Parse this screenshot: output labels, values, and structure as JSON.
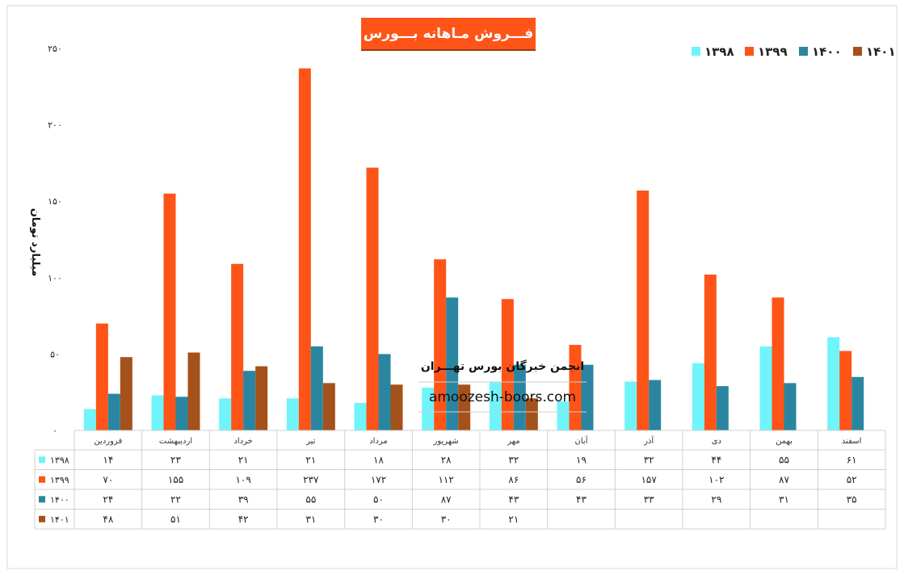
{
  "chart_data": {
    "type": "bar",
    "title": "فـــروش مـاهانه بـــورس",
    "ylabel": "میلیارد تومان",
    "xlabel": "",
    "ylim": [
      0,
      250
    ],
    "yticks": [
      "۰",
      "۵۰",
      "۱۰۰",
      "۱۵۰",
      "۲۰۰",
      "۲۵۰"
    ],
    "ytick_values": [
      0,
      50,
      100,
      150,
      200,
      250
    ],
    "grid": false,
    "legend_position": "top-right",
    "categories": [
      "فروردین",
      "اردیبهشت",
      "خرداد",
      "تیر",
      "مرداد",
      "شهریور",
      "مهر",
      "آبان",
      "آذر",
      "دی",
      "بهمن",
      "اسفند"
    ],
    "series": [
      {
        "name": "۱۳۹۸",
        "color": "#6ff5f9",
        "values": [
          14,
          23,
          21,
          21,
          18,
          28,
          32,
          19,
          32,
          44,
          55,
          61
        ],
        "labels": [
          "۱۴",
          "۲۳",
          "۲۱",
          "۲۱",
          "۱۸",
          "۲۸",
          "۳۲",
          "۱۹",
          "۳۲",
          "۴۴",
          "۵۵",
          "۶۱"
        ]
      },
      {
        "name": "۱۳۹۹",
        "color": "#fe5418",
        "values": [
          70,
          155,
          109,
          237,
          172,
          112,
          86,
          56,
          157,
          102,
          87,
          52
        ],
        "labels": [
          "۷۰",
          "۱۵۵",
          "۱۰۹",
          "۲۳۷",
          "۱۷۲",
          "۱۱۲",
          "۸۶",
          "۵۶",
          "۱۵۷",
          "۱۰۲",
          "۸۷",
          "۵۲"
        ]
      },
      {
        "name": "۱۴۰۰",
        "color": "#2a86a0",
        "values": [
          24,
          22,
          39,
          55,
          50,
          87,
          43,
          43,
          33,
          29,
          31,
          35
        ],
        "labels": [
          "۲۴",
          "۲۲",
          "۳۹",
          "۵۵",
          "۵۰",
          "۸۷",
          "۴۳",
          "۴۳",
          "۳۳",
          "۲۹",
          "۳۱",
          "۳۵"
        ]
      },
      {
        "name": "۱۴۰۱",
        "color": "#a5511b",
        "values": [
          48,
          51,
          42,
          31,
          30,
          30,
          21,
          null,
          null,
          null,
          null,
          null
        ],
        "labels": [
          "۴۸",
          "۵۱",
          "۴۲",
          "۳۱",
          "۳۰",
          "۳۰",
          "۲۱",
          "",
          "",
          "",
          "",
          ""
        ]
      }
    ],
    "watermark": {
      "line1": "انجمن خبرگان بورس تهـــران",
      "line2": "amoozesh-boors.com"
    }
  }
}
